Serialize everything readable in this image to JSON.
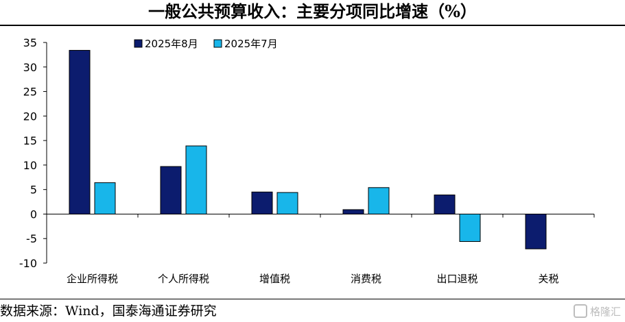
{
  "header": {
    "title": "一般公共预算收入：主要分项同比增速（%）"
  },
  "footer": {
    "source": "数据来源：Wind，国泰海通证券研究",
    "watermark": "格隆汇"
  },
  "colors": {
    "series_1": "#0c1c6e",
    "series_2": "#18b6ea"
  },
  "chart_data": {
    "type": "bar",
    "title": "一般公共预算收入：主要分项同比增速（%）",
    "categories": [
      "企业所得税",
      "个人所得税",
      "增值税",
      "消费税",
      "出口退税",
      "关税"
    ],
    "series": [
      {
        "name": "2025年8月",
        "values": [
          33.4,
          9.7,
          4.5,
          0.9,
          3.9,
          -7.1
        ]
      },
      {
        "name": "2025年7月",
        "values": [
          6.4,
          13.9,
          4.4,
          5.4,
          -5.6,
          null
        ]
      }
    ],
    "ylim": [
      -10,
      35
    ],
    "yticks": [
      35,
      30,
      25,
      20,
      15,
      10,
      5,
      0,
      -5,
      -10
    ],
    "xlabel": "",
    "ylabel": "",
    "grid": false,
    "legend_position": "top-left"
  }
}
